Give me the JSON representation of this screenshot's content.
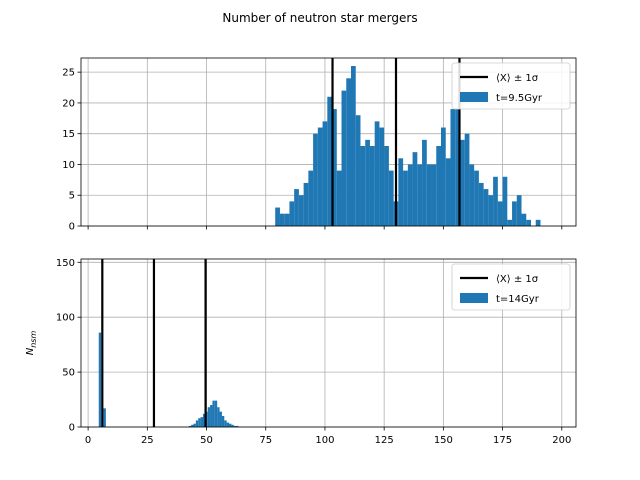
{
  "figure": {
    "title": "Number of neutron star mergers"
  },
  "chart_data": [
    {
      "type": "bar",
      "subtype": "histogram",
      "xlim": [
        -3,
        206
      ],
      "ylim": [
        0,
        27.3
      ],
      "xticks": [
        0,
        25,
        50,
        75,
        100,
        125,
        150,
        175,
        200
      ],
      "xtick_labels_visible": false,
      "yticks": [
        0,
        5,
        10,
        15,
        20,
        25
      ],
      "grid": true,
      "ylabel": "",
      "legend": {
        "placement": "top-right",
        "entries": [
          {
            "label": "⟨X⟩ ± 1σ",
            "kind": "line",
            "color": "#000000"
          },
          {
            "label": "t=9.5Gyr",
            "kind": "patch",
            "color": "#1f77b4"
          }
        ]
      },
      "series": [
        {
          "name": "t=9.5Gyr",
          "color": "#1f77b4",
          "bin_start": 79,
          "bin_width": 2,
          "values": [
            3,
            2,
            2,
            4,
            6,
            5,
            7,
            9,
            15,
            16,
            17,
            21,
            19,
            9,
            22,
            24,
            26,
            18,
            13,
            14,
            13,
            17,
            16,
            13,
            9,
            4,
            11,
            9,
            10,
            12,
            10,
            14,
            10,
            10,
            13,
            16,
            11,
            19,
            19,
            14,
            15,
            10,
            9,
            7,
            6,
            5,
            8,
            4,
            8,
            1,
            4,
            5,
            2,
            1,
            0,
            1
          ]
        }
      ],
      "vlines": [
        {
          "x": 103.2,
          "color": "#000000"
        },
        {
          "x": 130.0,
          "color": "#000000"
        },
        {
          "x": 156.8,
          "color": "#000000"
        }
      ]
    },
    {
      "type": "bar",
      "subtype": "histogram",
      "xlim": [
        -3,
        206
      ],
      "ylim": [
        0,
        153
      ],
      "xticks": [
        0,
        25,
        50,
        75,
        100,
        125,
        150,
        175,
        200
      ],
      "xtick_labels_visible": true,
      "yticks": [
        0,
        50,
        100,
        150
      ],
      "grid": true,
      "ylabel": "N_nsm",
      "legend": {
        "placement": "top-right",
        "entries": [
          {
            "label": "⟨X⟩ ± 1σ",
            "kind": "line",
            "color": "#000000"
          },
          {
            "label": "t=14Gyr",
            "kind": "patch",
            "color": "#1f77b4"
          }
        ]
      },
      "series": [
        {
          "name": "t=14Gyr",
          "color": "#1f77b4",
          "bin_start": 4.5,
          "bin_width": 1,
          "values": [
            86,
            0,
            17,
            0,
            0,
            0,
            0,
            0,
            0,
            0,
            0,
            0,
            0,
            0,
            0,
            0,
            0,
            0,
            0,
            0,
            0,
            0,
            0,
            0,
            0,
            0,
            0,
            0,
            0,
            0,
            0,
            0,
            0,
            0,
            0,
            0,
            0,
            0,
            1,
            2,
            3,
            6,
            8,
            9,
            12,
            14,
            18,
            20,
            24,
            24,
            18,
            14,
            10,
            6,
            4,
            3,
            2,
            1,
            1
          ]
        }
      ],
      "vlines": [
        {
          "x": 6.0,
          "color": "#000000"
        },
        {
          "x": 27.8,
          "color": "#000000"
        },
        {
          "x": 49.6,
          "color": "#000000"
        }
      ]
    }
  ]
}
